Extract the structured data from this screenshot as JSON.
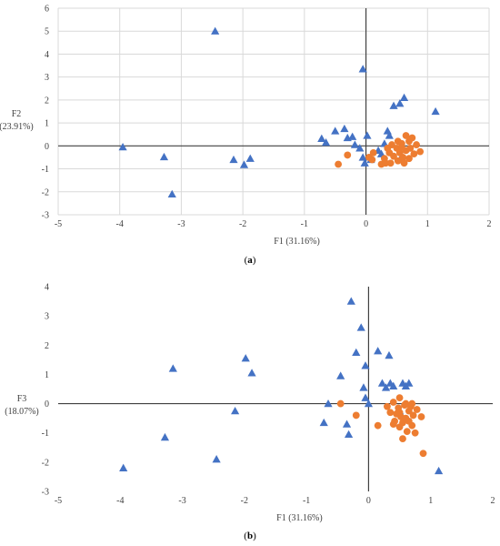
{
  "chart_data": [
    {
      "type": "scatter",
      "panel_label": "(a)",
      "xlabel": "F1 (31.16%)",
      "ylabel_line1": "F2",
      "ylabel_line2": "(23.91%)",
      "xlim": [
        -5,
        2
      ],
      "ylim": [
        -3,
        6
      ],
      "xticks": [
        -5,
        -4,
        -3,
        -2,
        -1,
        0,
        1,
        2
      ],
      "yticks": [
        -3,
        -2,
        -1,
        0,
        1,
        2,
        3,
        4,
        5,
        6
      ],
      "grid": true,
      "colors": {
        "triangles": "#4472C4",
        "circles": "#ED7D31"
      },
      "series": [
        {
          "marker": "triangle",
          "points": [
            [
              -3.95,
              -0.05
            ],
            [
              -3.28,
              -0.48
            ],
            [
              -3.15,
              -2.1
            ],
            [
              -2.45,
              5.0
            ],
            [
              -2.15,
              -0.6
            ],
            [
              -1.98,
              -0.82
            ],
            [
              -1.88,
              -0.55
            ],
            [
              -0.72,
              0.32
            ],
            [
              -0.65,
              0.15
            ],
            [
              -0.5,
              0.65
            ],
            [
              -0.35,
              0.75
            ],
            [
              -0.3,
              0.35
            ],
            [
              -0.22,
              0.4
            ],
            [
              -0.18,
              0.05
            ],
            [
              -0.1,
              -0.1
            ],
            [
              -0.05,
              -0.5
            ],
            [
              -0.05,
              3.35
            ],
            [
              -0.02,
              -0.75
            ],
            [
              0.02,
              0.45
            ],
            [
              0.08,
              -0.6
            ],
            [
              0.2,
              -0.2
            ],
            [
              0.25,
              -0.35
            ],
            [
              0.3,
              0.1
            ],
            [
              0.35,
              0.65
            ],
            [
              0.38,
              0.45
            ],
            [
              0.45,
              1.75
            ],
            [
              0.55,
              1.85
            ],
            [
              0.62,
              2.1
            ],
            [
              0.55,
              -0.6
            ],
            [
              1.13,
              1.5
            ]
          ]
        },
        {
          "marker": "circle",
          "points": [
            [
              -0.45,
              -0.8
            ],
            [
              -0.3,
              -0.4
            ],
            [
              0.05,
              -0.5
            ],
            [
              0.1,
              -0.6
            ],
            [
              0.12,
              -0.3
            ],
            [
              0.25,
              -0.8
            ],
            [
              0.3,
              -0.55
            ],
            [
              0.32,
              -0.75
            ],
            [
              0.38,
              -0.3
            ],
            [
              0.4,
              -0.75
            ],
            [
              0.42,
              0.05
            ],
            [
              0.45,
              -0.45
            ],
            [
              0.5,
              -0.1
            ],
            [
              0.52,
              0.2
            ],
            [
              0.52,
              -0.65
            ],
            [
              0.55,
              -0.3
            ],
            [
              0.58,
              0.1
            ],
            [
              0.6,
              -0.5
            ],
            [
              0.62,
              -0.75
            ],
            [
              0.65,
              0.45
            ],
            [
              0.65,
              -0.2
            ],
            [
              0.7,
              0.2
            ],
            [
              0.7,
              -0.55
            ],
            [
              0.72,
              -0.1
            ],
            [
              0.75,
              0.35
            ],
            [
              0.78,
              -0.35
            ],
            [
              0.82,
              0.05
            ],
            [
              0.88,
              -0.25
            ],
            [
              0.58,
              -0.05
            ],
            [
              0.35,
              -0.1
            ]
          ]
        }
      ]
    },
    {
      "type": "scatter",
      "panel_label": "(b)",
      "xlabel": "F1  (31.16%)",
      "ylabel_line1": "F3",
      "ylabel_line2": "(18.07%)",
      "xlim": [
        -5,
        2
      ],
      "ylim": [
        -3,
        4
      ],
      "xticks": [
        -5,
        -4,
        -3,
        -2,
        -1,
        0,
        1,
        2
      ],
      "yticks": [
        -3,
        -2,
        -1,
        0,
        1,
        2,
        3,
        4
      ],
      "grid": false,
      "colors": {
        "triangles": "#4472C4",
        "circles": "#ED7D31"
      },
      "series": [
        {
          "marker": "triangle",
          "points": [
            [
              -3.95,
              -2.2
            ],
            [
              -3.28,
              -1.15
            ],
            [
              -3.15,
              1.2
            ],
            [
              -2.45,
              -1.9
            ],
            [
              -2.15,
              -0.25
            ],
            [
              -1.98,
              1.55
            ],
            [
              -1.88,
              1.05
            ],
            [
              -0.72,
              -0.65
            ],
            [
              -0.65,
              0.0
            ],
            [
              -0.45,
              0.95
            ],
            [
              -0.35,
              -0.7
            ],
            [
              -0.32,
              -1.05
            ],
            [
              -0.28,
              3.5
            ],
            [
              -0.2,
              1.75
            ],
            [
              -0.12,
              2.6
            ],
            [
              -0.08,
              0.55
            ],
            [
              -0.05,
              1.3
            ],
            [
              -0.05,
              0.2
            ],
            [
              0.0,
              0.0
            ],
            [
              0.15,
              1.8
            ],
            [
              0.22,
              0.7
            ],
            [
              0.28,
              0.55
            ],
            [
              0.33,
              1.65
            ],
            [
              0.35,
              0.7
            ],
            [
              0.4,
              0.6
            ],
            [
              0.5,
              -0.25
            ],
            [
              0.55,
              0.7
            ],
            [
              0.6,
              0.6
            ],
            [
              0.65,
              0.7
            ],
            [
              1.13,
              -2.3
            ]
          ]
        },
        {
          "marker": "circle",
          "points": [
            [
              -0.45,
              0.0
            ],
            [
              -0.2,
              -0.4
            ],
            [
              0.15,
              -0.75
            ],
            [
              0.3,
              -0.1
            ],
            [
              0.35,
              -0.3
            ],
            [
              0.4,
              0.05
            ],
            [
              0.42,
              -0.6
            ],
            [
              0.45,
              -0.35
            ],
            [
              0.48,
              -0.15
            ],
            [
              0.5,
              0.2
            ],
            [
              0.5,
              -0.8
            ],
            [
              0.52,
              -0.45
            ],
            [
              0.55,
              -0.65
            ],
            [
              0.55,
              -1.2
            ],
            [
              0.58,
              -0.05
            ],
            [
              0.6,
              -0.5
            ],
            [
              0.62,
              -0.95
            ],
            [
              0.65,
              -0.25
            ],
            [
              0.68,
              -0.1
            ],
            [
              0.7,
              -0.75
            ],
            [
              0.72,
              -0.4
            ],
            [
              0.75,
              -1.0
            ],
            [
              0.78,
              -0.2
            ],
            [
              0.85,
              -0.45
            ],
            [
              0.88,
              -1.7
            ],
            [
              0.6,
              0.0
            ],
            [
              0.65,
              -0.6
            ],
            [
              0.4,
              -0.7
            ],
            [
              0.7,
              0.0
            ],
            [
              0.5,
              -0.3
            ]
          ]
        }
      ]
    }
  ]
}
